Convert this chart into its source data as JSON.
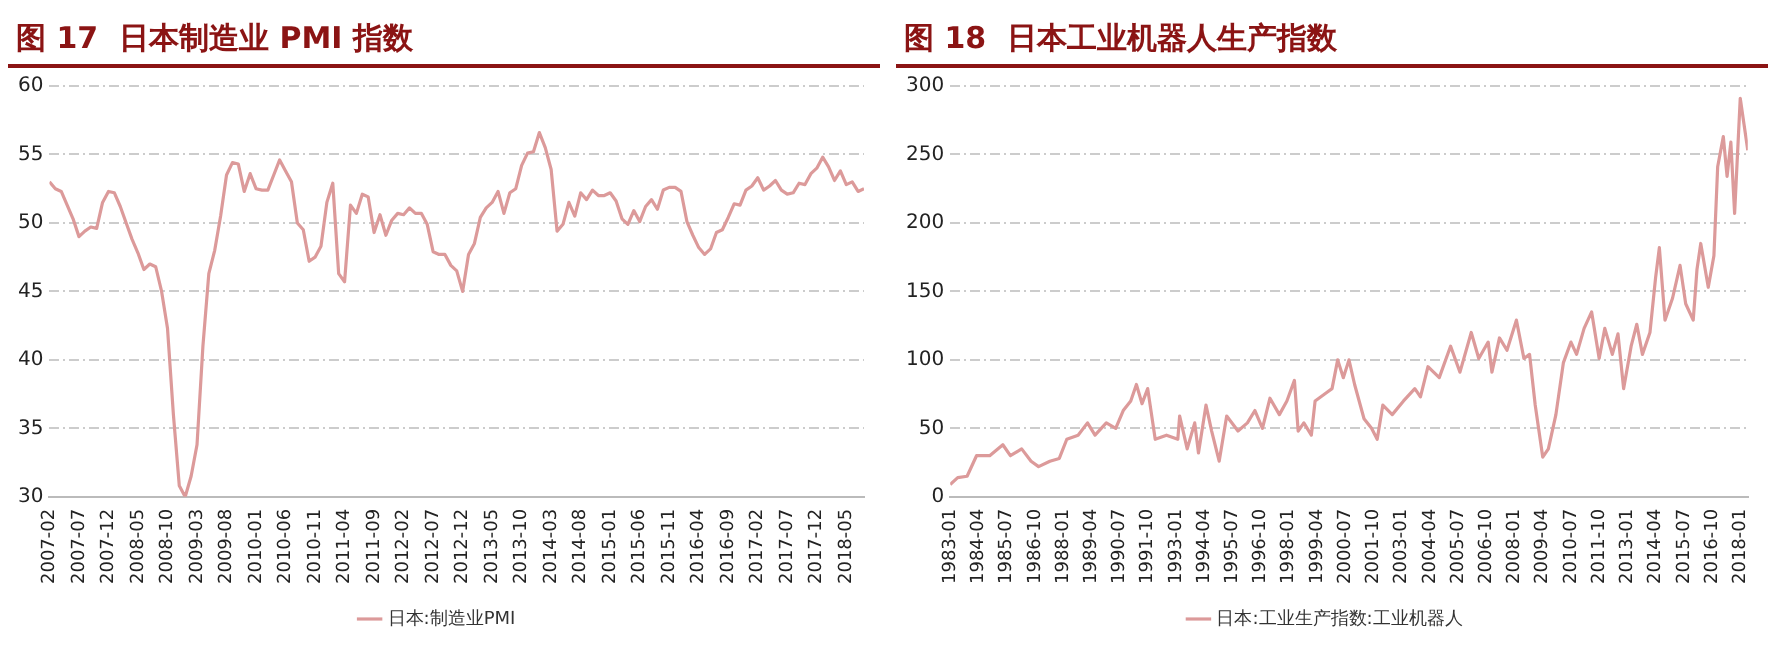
{
  "chart_data": [
    {
      "type": "line",
      "title": "图 17  日本制造业 PMI 指数",
      "legend": "bottom",
      "grid": "y",
      "marker": "none",
      "xlim": [
        "2007-02",
        "2018-08"
      ],
      "ylim": [
        30,
        60
      ],
      "yticks": [
        30,
        35,
        40,
        45,
        50,
        55,
        60
      ],
      "xticks": [
        "2007-02",
        "2007-07",
        "2007-12",
        "2008-05",
        "2008-10",
        "2009-03",
        "2009-08",
        "2010-01",
        "2010-06",
        "2010-11",
        "2011-04",
        "2011-09",
        "2012-02",
        "2012-07",
        "2012-12",
        "2013-05",
        "2013-10",
        "2014-03",
        "2014-08",
        "2015-01",
        "2015-06",
        "2015-11",
        "2016-04",
        "2016-09",
        "2017-02",
        "2017-07",
        "2017-12",
        "2018-05"
      ],
      "series": [
        {
          "name": "日本:制造业PMI",
          "color": "#dc9a9a",
          "x": [
            "2007-02",
            "2007-03",
            "2007-04",
            "2007-05",
            "2007-06",
            "2007-07",
            "2007-08",
            "2007-09",
            "2007-10",
            "2007-11",
            "2007-12",
            "2008-01",
            "2008-02",
            "2008-03",
            "2008-04",
            "2008-05",
            "2008-06",
            "2008-07",
            "2008-08",
            "2008-09",
            "2008-10",
            "2008-11",
            "2008-12",
            "2009-01",
            "2009-02",
            "2009-03",
            "2009-04",
            "2009-05",
            "2009-06",
            "2009-07",
            "2009-08",
            "2009-09",
            "2009-10",
            "2009-11",
            "2009-12",
            "2010-01",
            "2010-02",
            "2010-03",
            "2010-04",
            "2010-05",
            "2010-06",
            "2010-07",
            "2010-08",
            "2010-09",
            "2010-10",
            "2010-11",
            "2010-12",
            "2011-01",
            "2011-02",
            "2011-03",
            "2011-04",
            "2011-05",
            "2011-06",
            "2011-07",
            "2011-08",
            "2011-09",
            "2011-10",
            "2011-11",
            "2011-12",
            "2012-01",
            "2012-02",
            "2012-03",
            "2012-04",
            "2012-05",
            "2012-06",
            "2012-07",
            "2012-08",
            "2012-09",
            "2012-10",
            "2012-11",
            "2012-12",
            "2013-01",
            "2013-02",
            "2013-03",
            "2013-04",
            "2013-05",
            "2013-06",
            "2013-07",
            "2013-08",
            "2013-09",
            "2013-10",
            "2013-11",
            "2013-12",
            "2014-01",
            "2014-02",
            "2014-03",
            "2014-04",
            "2014-05",
            "2014-06",
            "2014-07",
            "2014-08",
            "2014-09",
            "2014-10",
            "2014-11",
            "2014-12",
            "2015-01",
            "2015-02",
            "2015-03",
            "2015-04",
            "2015-05",
            "2015-06",
            "2015-07",
            "2015-08",
            "2015-09",
            "2015-10",
            "2015-11",
            "2015-12",
            "2016-01",
            "2016-02",
            "2016-03",
            "2016-04",
            "2016-05",
            "2016-06",
            "2016-07",
            "2016-08",
            "2016-09",
            "2016-10",
            "2016-11",
            "2016-12",
            "2017-01",
            "2017-02",
            "2017-03",
            "2017-04",
            "2017-05",
            "2017-06",
            "2017-07",
            "2017-08",
            "2017-09",
            "2017-10",
            "2017-11",
            "2017-12",
            "2018-01",
            "2018-02",
            "2018-03",
            "2018-04",
            "2018-05",
            "2018-06",
            "2018-07",
            "2018-08"
          ],
          "values": [
            53.0,
            52.5,
            52.3,
            51.3,
            50.3,
            49.0,
            49.4,
            49.7,
            49.6,
            51.5,
            52.3,
            52.2,
            51.2,
            50.0,
            48.8,
            47.8,
            46.6,
            47.0,
            46.8,
            45.0,
            42.3,
            36.0,
            30.8,
            30.0,
            31.5,
            33.8,
            41.0,
            46.3,
            48.0,
            50.5,
            53.5,
            54.4,
            54.3,
            52.3,
            53.6,
            52.5,
            52.4,
            52.4,
            53.5,
            54.6,
            53.8,
            53.0,
            50.0,
            49.5,
            47.2,
            47.5,
            48.3,
            51.5,
            52.9,
            46.3,
            45.7,
            51.3,
            50.7,
            52.1,
            51.9,
            49.3,
            50.6,
            49.1,
            50.2,
            50.7,
            50.6,
            51.1,
            50.7,
            50.7,
            49.9,
            47.9,
            47.7,
            47.7,
            46.9,
            46.5,
            45.0,
            47.7,
            48.5,
            50.4,
            51.1,
            51.5,
            52.3,
            50.7,
            52.2,
            52.5,
            54.2,
            55.1,
            55.2,
            56.6,
            55.5,
            53.9,
            49.4,
            49.9,
            51.5,
            50.5,
            52.2,
            51.7,
            52.4,
            52.0,
            52.0,
            52.2,
            51.6,
            50.3,
            49.9,
            50.9,
            50.1,
            51.2,
            51.7,
            51.0,
            52.4,
            52.6,
            52.6,
            52.3,
            50.1,
            49.1,
            48.2,
            47.7,
            48.1,
            49.3,
            49.5,
            50.4,
            51.4,
            51.3,
            52.4,
            52.7,
            53.3,
            52.4,
            52.7,
            53.1,
            52.4,
            52.1,
            52.2,
            52.9,
            52.8,
            53.6,
            54.0,
            54.8,
            54.1,
            53.1,
            53.8,
            52.8,
            53.0,
            52.3,
            52.5
          ]
        }
      ]
    },
    {
      "type": "line",
      "title": "图 18  日本工业机器人生产指数",
      "legend": "bottom",
      "grid": "y",
      "marker": "none",
      "xlim": [
        "1983-01",
        "2018-05"
      ],
      "ylim": [
        0,
        300
      ],
      "yticks": [
        0,
        50,
        100,
        150,
        200,
        250,
        300
      ],
      "xticks": [
        "1983-01",
        "1984-04",
        "1985-07",
        "1986-10",
        "1988-01",
        "1989-04",
        "1990-07",
        "1991-10",
        "1993-01",
        "1994-04",
        "1995-07",
        "1996-10",
        "1998-01",
        "1999-04",
        "2000-07",
        "2001-10",
        "2003-01",
        "2004-04",
        "2005-07",
        "2006-10",
        "2008-01",
        "2009-04",
        "2010-07",
        "2011-10",
        "2013-01",
        "2014-04",
        "2015-07",
        "2016-10",
        "2018-01"
      ],
      "series": [
        {
          "name": "日本:工业生产指数:工业机器人",
          "color": "#dc9a9a",
          "x": [
            "1983-01",
            "1983-05",
            "1983-10",
            "1984-03",
            "1984-10",
            "1985-05",
            "1985-09",
            "1986-03",
            "1986-08",
            "1986-12",
            "1987-06",
            "1987-11",
            "1988-03",
            "1988-09",
            "1989-02",
            "1989-06",
            "1989-12",
            "1990-05",
            "1990-09",
            "1991-01",
            "1991-04",
            "1991-07",
            "1991-10",
            "1992-02",
            "1992-08",
            "1993-02",
            "1993-03",
            "1993-07",
            "1993-11",
            "1994-01",
            "1994-05",
            "1994-08",
            "1994-12",
            "1995-04",
            "1995-10",
            "1996-03",
            "1996-07",
            "1996-11",
            "1997-03",
            "1997-08",
            "1997-12",
            "1998-04",
            "1998-06",
            "1998-09",
            "1999-01",
            "1999-03",
            "1999-09",
            "1999-12",
            "2000-03",
            "2000-06",
            "2000-09",
            "2000-12",
            "2001-05",
            "2001-09",
            "2001-12",
            "2002-03",
            "2002-08",
            "2003-02",
            "2003-08",
            "2003-11",
            "2004-03",
            "2004-09",
            "2005-03",
            "2005-08",
            "2006-02",
            "2006-06",
            "2006-11",
            "2007-01",
            "2007-05",
            "2007-09",
            "2008-02",
            "2008-06",
            "2008-09",
            "2008-12",
            "2009-04",
            "2009-07",
            "2009-11",
            "2010-03",
            "2010-07",
            "2010-10",
            "2011-02",
            "2011-06",
            "2011-10",
            "2012-01",
            "2012-05",
            "2012-08",
            "2012-11",
            "2013-03",
            "2013-06",
            "2013-09",
            "2014-01",
            "2014-04",
            "2014-06",
            "2014-09",
            "2015-01",
            "2015-05",
            "2015-08",
            "2015-12",
            "2016-02",
            "2016-04",
            "2016-08",
            "2016-11",
            "2017-01",
            "2017-04",
            "2017-06",
            "2017-08",
            "2017-10",
            "2018-01",
            "2018-03",
            "2018-05"
          ],
          "values": [
            9,
            14,
            15,
            30,
            30,
            38,
            30,
            35,
            26,
            22,
            26,
            28,
            42,
            45,
            54,
            45,
            54,
            50,
            63,
            70,
            82,
            68,
            79,
            42,
            45,
            42,
            59,
            35,
            54,
            32,
            67,
            48,
            26,
            59,
            48,
            54,
            63,
            50,
            72,
            60,
            70,
            85,
            48,
            54,
            45,
            70,
            76,
            79,
            100,
            87,
            100,
            82,
            57,
            50,
            42,
            67,
            60,
            70,
            79,
            73,
            95,
            87,
            110,
            91,
            120,
            101,
            113,
            91,
            116,
            107,
            129,
            101,
            104,
            67,
            29,
            35,
            60,
            98,
            113,
            104,
            123,
            135,
            101,
            123,
            104,
            119,
            79,
            110,
            126,
            104,
            120,
            160,
            182,
            129,
            145,
            169,
            141,
            129,
            166,
            185,
            153,
            176,
            241,
            263,
            234,
            259,
            207,
            291,
            272,
            253
          ]
        }
      ]
    }
  ]
}
